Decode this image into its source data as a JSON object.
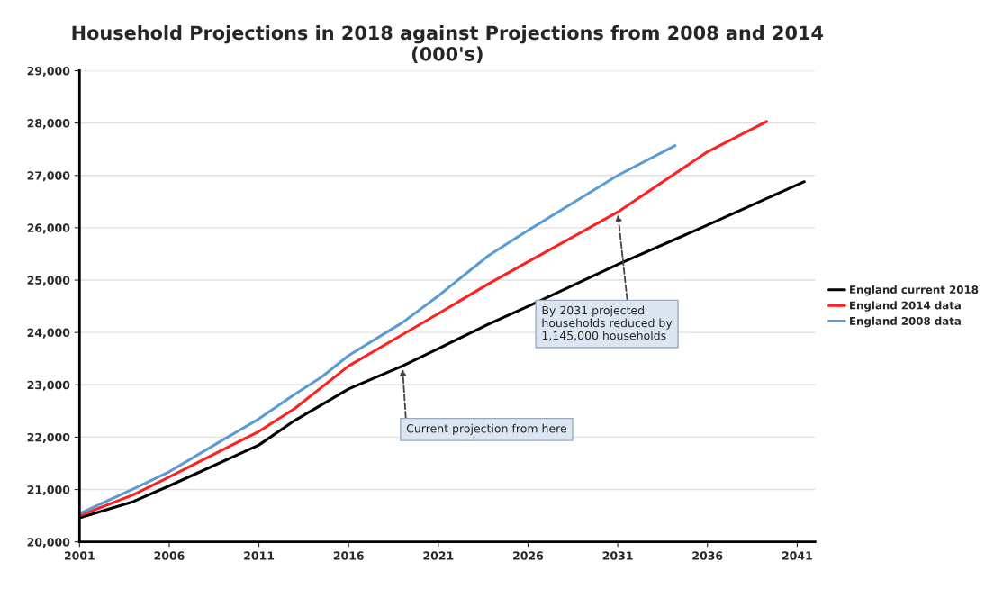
{
  "chart_data": {
    "type": "line",
    "title": "Household Projections in 2018 against Projections from 2008 and 2014\n(000's)",
    "xlim": [
      2001,
      2042
    ],
    "xticks": [
      2001,
      2006,
      2011,
      2016,
      2021,
      2026,
      2031,
      2036,
      2041
    ],
    "ylim": [
      20000,
      29000
    ],
    "yticks": [
      {
        "value": 20000,
        "label": "20,000"
      },
      {
        "value": 21000,
        "label": "21,000"
      },
      {
        "value": 22000,
        "label": "22,000"
      },
      {
        "value": 23000,
        "label": "23,000"
      },
      {
        "value": 24000,
        "label": "24,000"
      },
      {
        "value": 25000,
        "label": "25,000"
      },
      {
        "value": 26000,
        "label": "26,000"
      },
      {
        "value": 27000,
        "label": "27,000"
      },
      {
        "value": 28000,
        "label": "28,000"
      },
      {
        "value": 29000,
        "label": "29,000"
      }
    ],
    "grid": "y",
    "legend": "right",
    "marker": "none",
    "line_style": "solid",
    "series": [
      {
        "name": "England current 2018",
        "color": "#000000",
        "x": [
          2001,
          2004,
          2006,
          2011,
          2013,
          2016,
          2019,
          2021,
          2023.8,
          2026,
          2031,
          2036,
          2041.4
        ],
        "values": [
          20460,
          20770,
          21070,
          21850,
          22320,
          22920,
          23360,
          23690,
          24160,
          24500,
          25300,
          26050,
          26880
        ]
      },
      {
        "name": "England 2014 data",
        "color": "#ff2020",
        "x": [
          2001,
          2004,
          2006,
          2011,
          2013,
          2016,
          2019,
          2021,
          2023.8,
          2026,
          2031,
          2036,
          2039.3
        ],
        "values": [
          20500,
          20900,
          21240,
          22110,
          22550,
          23360,
          23960,
          24360,
          24930,
          25350,
          26300,
          27450,
          28030
        ]
      },
      {
        "name": "England 2008 data",
        "color": "#5b9bd5",
        "x": [
          2001,
          2004,
          2006,
          2009,
          2011,
          2013,
          2014.5,
          2016,
          2019,
          2021,
          2023.8,
          2026,
          2031,
          2034.2
        ],
        "values": [
          20540,
          21010,
          21340,
          21950,
          22350,
          22820,
          23150,
          23560,
          24190,
          24700,
          25470,
          25950,
          27000,
          27570
        ]
      }
    ],
    "annotations": [
      {
        "text": "Current projection from here",
        "x": 2019,
        "y": 23350
      },
      {
        "text": "By 2031 projected\nhouseholds reduced by\n1,145,000 households",
        "x": 2031,
        "y": 26300
      }
    ]
  }
}
